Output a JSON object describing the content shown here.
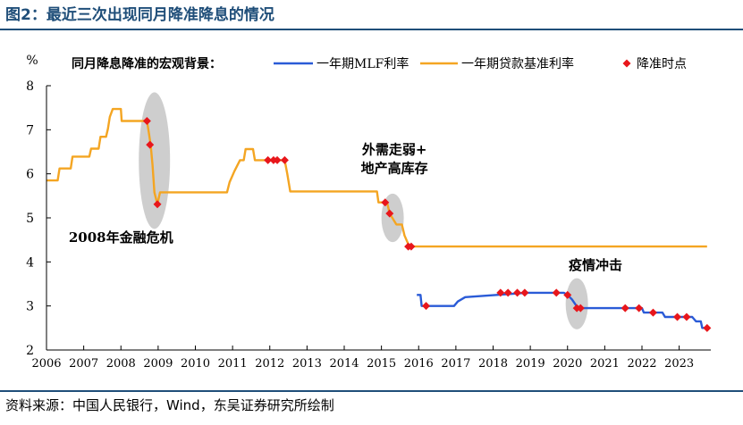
{
  "figure": {
    "title": "图2：最近三次出现同月降准降息的情况",
    "source": "资料来源：中国人民银行，Wind，东吴证券研究所绘制"
  },
  "chart_data": {
    "type": "line",
    "title": "同月降息降准的宏观背景：",
    "ylabel": "%",
    "xlabel": "",
    "xlim": [
      2006.0,
      2023.85
    ],
    "ylim": [
      2,
      8
    ],
    "x_ticks": [
      2006,
      2007,
      2008,
      2009,
      2010,
      2011,
      2012,
      2013,
      2014,
      2015,
      2016,
      2017,
      2018,
      2019,
      2020,
      2021,
      2022,
      2023
    ],
    "y_ticks": [
      2,
      3,
      4,
      5,
      6,
      7,
      8
    ],
    "grid": false,
    "legend_position": "top-right",
    "colors": {
      "mlf": "#2a5bd7",
      "lpr": "#f4a522",
      "rrr": "#e8161b",
      "axis": "#000000",
      "shade": "#bdbdbd"
    },
    "series": [
      {
        "name": "一年期MLF利率",
        "color": "#2a5bd7",
        "points": [
          [
            2015.95,
            3.25
          ],
          [
            2016.05,
            3.25
          ],
          [
            2016.08,
            3.0
          ],
          [
            2016.95,
            3.0
          ],
          [
            2017.05,
            3.1
          ],
          [
            2017.25,
            3.2
          ],
          [
            2018.9,
            3.3
          ],
          [
            2019.9,
            3.3
          ],
          [
            2020.0,
            3.25
          ],
          [
            2020.12,
            3.15
          ],
          [
            2020.28,
            2.95
          ],
          [
            2022.0,
            2.95
          ],
          [
            2022.05,
            2.85
          ],
          [
            2022.55,
            2.85
          ],
          [
            2022.62,
            2.75
          ],
          [
            2023.35,
            2.75
          ],
          [
            2023.45,
            2.65
          ],
          [
            2023.58,
            2.65
          ],
          [
            2023.62,
            2.5
          ],
          [
            2023.72,
            2.5
          ]
        ]
      },
      {
        "name": "一年期贷款基准利率",
        "color": "#f4a522",
        "points": [
          [
            2006.0,
            5.85
          ],
          [
            2006.3,
            5.85
          ],
          [
            2006.35,
            6.12
          ],
          [
            2006.65,
            6.12
          ],
          [
            2006.7,
            6.39
          ],
          [
            2007.15,
            6.39
          ],
          [
            2007.2,
            6.57
          ],
          [
            2007.4,
            6.57
          ],
          [
            2007.45,
            6.84
          ],
          [
            2007.6,
            6.84
          ],
          [
            2007.65,
            7.02
          ],
          [
            2007.7,
            7.29
          ],
          [
            2007.78,
            7.47
          ],
          [
            2008.0,
            7.47
          ],
          [
            2008.02,
            7.2
          ],
          [
            2008.4,
            7.2
          ],
          [
            2008.7,
            7.2
          ],
          [
            2008.75,
            6.93
          ],
          [
            2008.8,
            6.66
          ],
          [
            2008.85,
            6.2
          ],
          [
            2008.9,
            5.58
          ],
          [
            2008.98,
            5.31
          ],
          [
            2009.05,
            5.58
          ],
          [
            2010.85,
            5.58
          ],
          [
            2010.92,
            5.81
          ],
          [
            2011.05,
            6.06
          ],
          [
            2011.2,
            6.31
          ],
          [
            2011.3,
            6.31
          ],
          [
            2011.35,
            6.56
          ],
          [
            2011.55,
            6.56
          ],
          [
            2011.6,
            6.31
          ],
          [
            2012.4,
            6.31
          ],
          [
            2012.47,
            6.0
          ],
          [
            2012.55,
            5.6
          ],
          [
            2014.88,
            5.6
          ],
          [
            2014.92,
            5.35
          ],
          [
            2015.15,
            5.35
          ],
          [
            2015.22,
            5.1
          ],
          [
            2015.4,
            4.85
          ],
          [
            2015.55,
            4.85
          ],
          [
            2015.62,
            4.6
          ],
          [
            2015.75,
            4.35
          ],
          [
            2023.75,
            4.35
          ]
        ]
      }
    ],
    "markers": {
      "name": "降准时点",
      "color": "#e8161b",
      "points": [
        [
          2008.7,
          7.2
        ],
        [
          2008.78,
          6.66
        ],
        [
          2008.98,
          5.31
        ],
        [
          2011.95,
          6.31
        ],
        [
          2012.1,
          6.31
        ],
        [
          2012.2,
          6.31
        ],
        [
          2012.4,
          6.31
        ],
        [
          2015.1,
          5.35
        ],
        [
          2015.22,
          5.1
        ],
        [
          2015.72,
          4.35
        ],
        [
          2015.8,
          4.35
        ],
        [
          2016.2,
          3.0
        ],
        [
          2018.2,
          3.3
        ],
        [
          2018.4,
          3.3
        ],
        [
          2018.65,
          3.3
        ],
        [
          2018.85,
          3.3
        ],
        [
          2019.7,
          3.3
        ],
        [
          2020.0,
          3.25
        ],
        [
          2020.25,
          2.95
        ],
        [
          2020.35,
          2.95
        ],
        [
          2021.55,
          2.95
        ],
        [
          2021.92,
          2.95
        ],
        [
          2022.3,
          2.85
        ],
        [
          2022.95,
          2.75
        ],
        [
          2023.2,
          2.75
        ],
        [
          2023.75,
          2.5
        ]
      ]
    },
    "annotations": [
      {
        "text": "2008年金融危机",
        "x": 2008.0,
        "y": 4.45
      },
      {
        "lines": [
          "外需走弱+",
          "地产高库存"
        ],
        "x": 2015.35,
        "y": 6.45
      },
      {
        "text": "疫情冲击",
        "x": 2020.75,
        "y": 3.82
      }
    ],
    "highlights": [
      {
        "x": 2008.9,
        "y": 6.3,
        "rx": 0.42,
        "ry": 1.55
      },
      {
        "x": 2015.3,
        "y": 5.0,
        "rx": 0.3,
        "ry": 0.55
      },
      {
        "x": 2020.25,
        "y": 3.05,
        "rx": 0.3,
        "ry": 0.58
      }
    ]
  }
}
